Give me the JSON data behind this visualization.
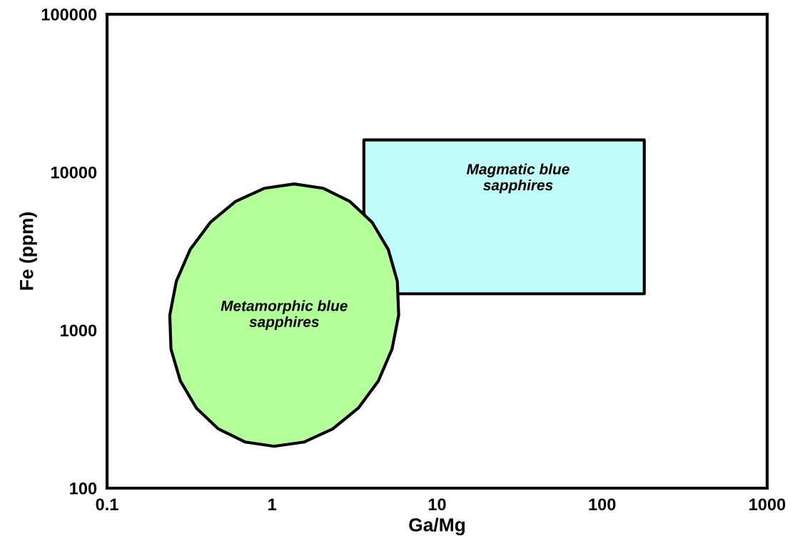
{
  "chart_data": {
    "type": "area",
    "xlabel": "Ga/Mg",
    "ylabel": "Fe (ppm)",
    "log": "xy",
    "xlim": [
      0.1,
      1000
    ],
    "ylim": [
      100,
      100000
    ],
    "xticks": [
      0.1,
      1,
      10,
      100,
      1000
    ],
    "yticks": [
      100,
      1000,
      10000,
      100000
    ],
    "grid": false,
    "legend": false,
    "series": [
      {
        "color": "#c0fcfa",
        "x": [
          3.6,
          3.6,
          180,
          180,
          5.7
        ],
        "values": [
          5500,
          16000,
          16000,
          1700,
          1700
        ]
      },
      {
        "color": "#b3ff99",
        "x": [
          5.85,
          5.74,
          5.06,
          4.04,
          2.96,
          2.05,
          1.36,
          0.895,
          0.601,
          0.423,
          0.319,
          0.263,
          0.24,
          0.244,
          0.278,
          0.348,
          0.473,
          0.685,
          1.03,
          1.57,
          2.33,
          3.33,
          4.41,
          5.33,
          5.85
        ],
        "values": [
          1245,
          2042,
          3243,
          4819,
          6531,
          7907,
          8433,
          7907,
          6531,
          4819,
          3243,
          2042,
          1245,
          759,
          478,
          321,
          237,
          196,
          184,
          196,
          237,
          321,
          478,
          759,
          1245
        ]
      }
    ],
    "annotations": [
      "Magmatic blue\nsapphires",
      "Metamorphic blue\nsapphires"
    ]
  }
}
